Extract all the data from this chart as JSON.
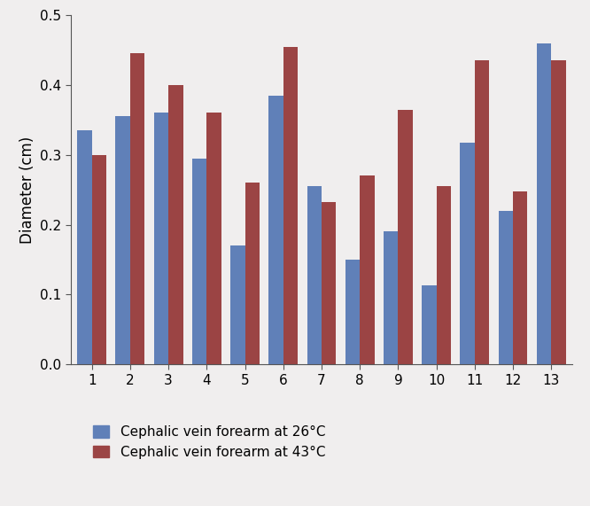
{
  "categories": [
    1,
    2,
    3,
    4,
    5,
    6,
    7,
    8,
    9,
    10,
    11,
    12,
    13
  ],
  "series_26": [
    0.335,
    0.355,
    0.36,
    0.295,
    0.17,
    0.385,
    0.255,
    0.15,
    0.19,
    0.113,
    0.318,
    0.22,
    0.46
  ],
  "series_43": [
    0.3,
    0.445,
    0.4,
    0.36,
    0.26,
    0.455,
    0.233,
    0.27,
    0.365,
    0.255,
    0.435,
    0.248,
    0.435
  ],
  "color_26": "#6080b8",
  "color_43": "#9b4444",
  "ylabel": "Diameter (cm)",
  "ylim": [
    0,
    0.5
  ],
  "yticks": [
    0,
    0.1,
    0.2,
    0.3,
    0.4,
    0.5
  ],
  "legend_26": "Cephalic vein forearm at 26°C",
  "legend_43": "Cephalic vein forearm at 43°C",
  "bar_width": 0.38,
  "figsize": [
    6.66,
    5.71
  ],
  "dpi": 100,
  "bg_color": "#f0eeee"
}
